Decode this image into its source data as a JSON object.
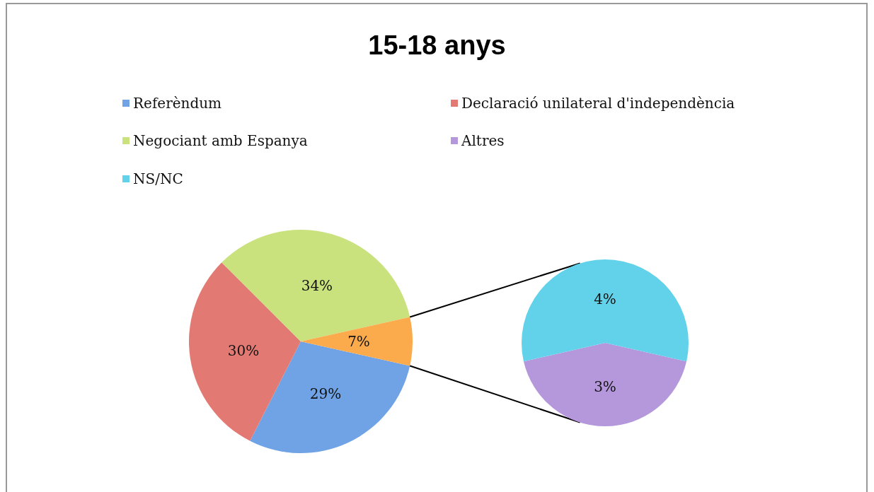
{
  "chart_data": [
    {
      "type": "pie",
      "title": "15-18 anys",
      "categories": [
        "Referèndum",
        "Declaració unilateral d'independència",
        "Negociant amb Espanya",
        null
      ],
      "values": [
        29,
        30,
        34,
        7
      ],
      "colors": [
        "#6fa3e6",
        "#e27a73",
        "#c9e27e",
        "#fbab4c"
      ],
      "value_labels": [
        "29%",
        "30%",
        "34%",
        "7%"
      ],
      "legend": "top"
    },
    {
      "type": "pie",
      "categories": [
        "Altres",
        "NS/NC"
      ],
      "values": [
        3,
        4
      ],
      "colors": [
        "#b597dc",
        "#62d2ea"
      ],
      "value_labels": [
        "3%",
        "4%"
      ],
      "legend": "top"
    }
  ]
}
